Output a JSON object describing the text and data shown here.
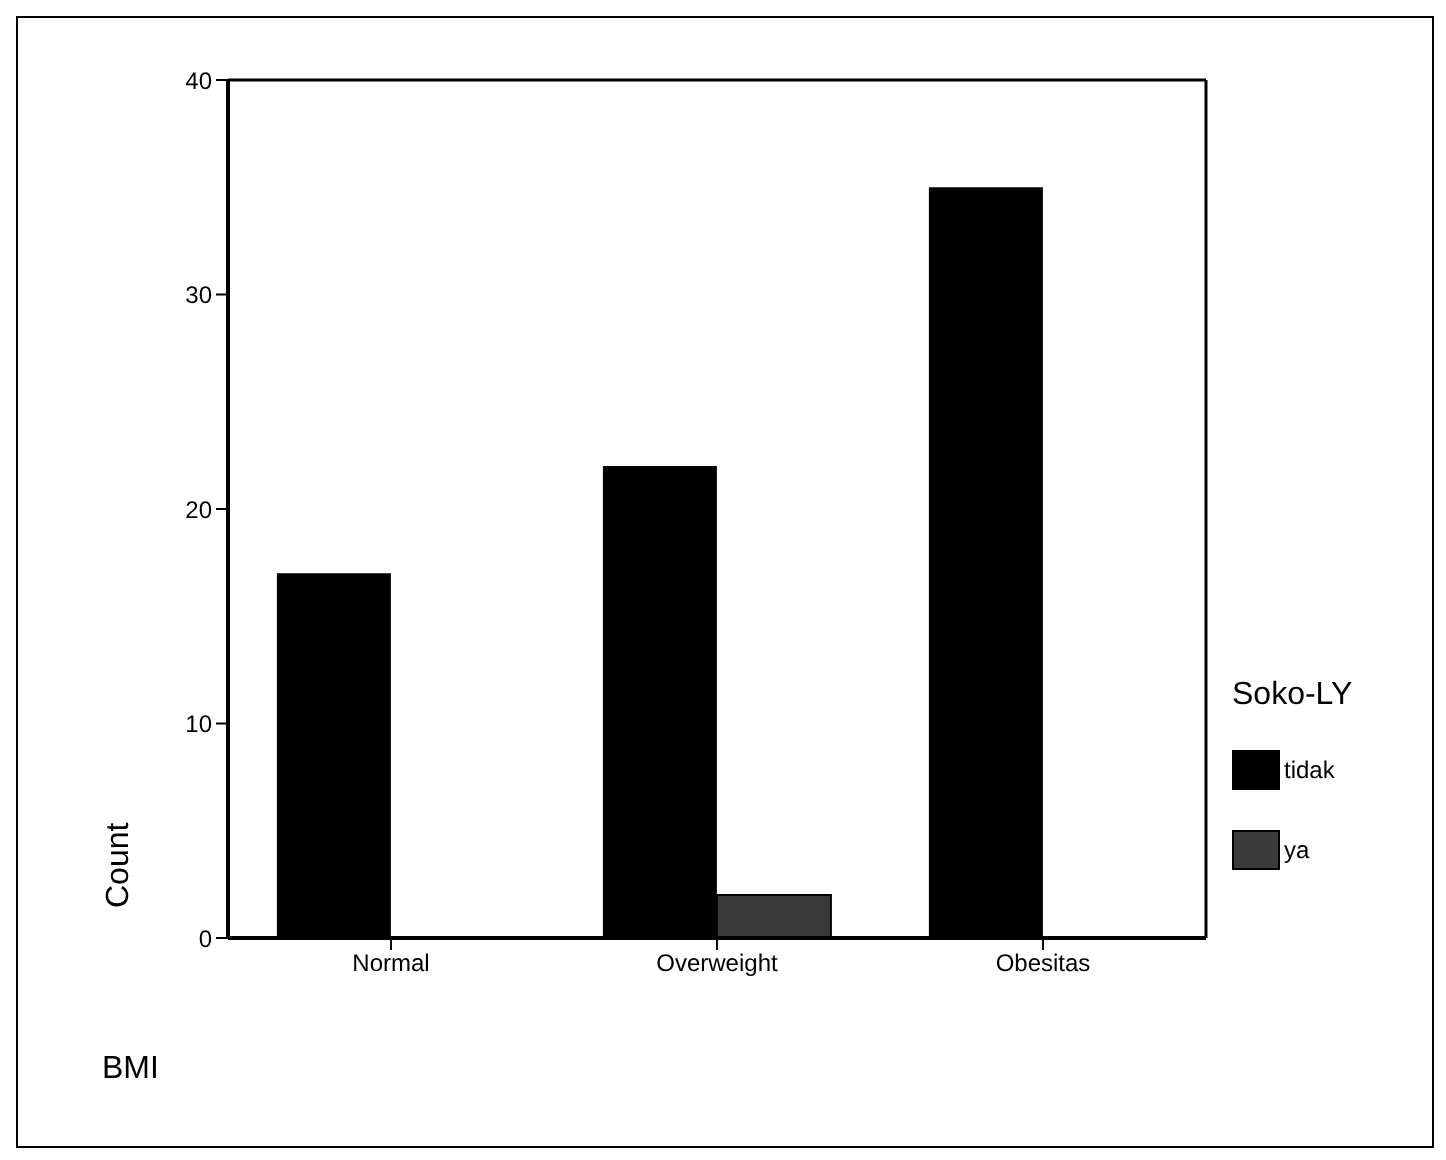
{
  "chart_data": {
    "type": "bar",
    "xlabel": "BMI",
    "ylabel": "Count",
    "legend_title": "Soko-LY",
    "categories": [
      "Normal",
      "Overweight",
      "Obesitas"
    ],
    "series": [
      {
        "name": "tidak",
        "color": "#000000",
        "values": [
          17,
          22,
          35
        ]
      },
      {
        "name": "ya",
        "color": "#3a3a3a",
        "values": [
          0,
          2,
          0
        ]
      }
    ],
    "ylim": [
      0,
      40
    ],
    "yticks": [
      0,
      10,
      20,
      30,
      40
    ],
    "legend": "right"
  }
}
